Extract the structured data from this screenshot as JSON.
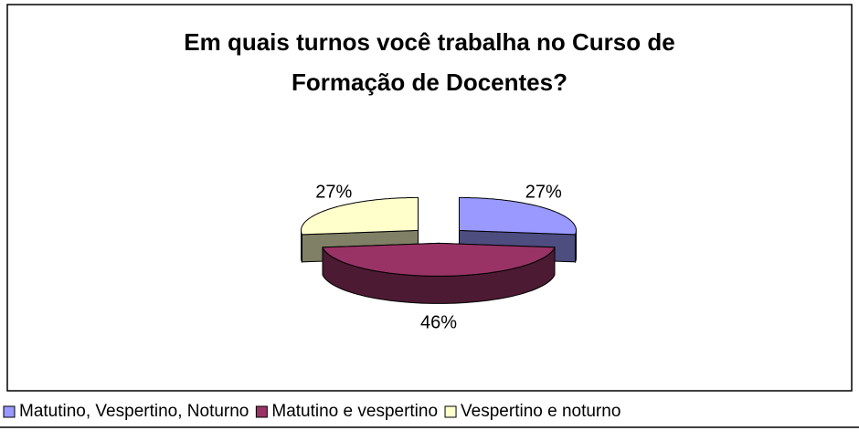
{
  "chart_data": {
    "type": "pie3d",
    "title": [
      "Em quais turnos você trabalha no Curso de",
      "Formação de Docentes?"
    ],
    "categories": [
      "Matutino, Vespertino, Noturno",
      "Matutino e vespertino",
      "Vespertino e noturno"
    ],
    "values": [
      27,
      46,
      27
    ],
    "value_labels": [
      "27%",
      "46%",
      "27%"
    ],
    "colors": [
      "#9999ff",
      "#993366",
      "#ffffcc"
    ],
    "legend": "bottom"
  }
}
